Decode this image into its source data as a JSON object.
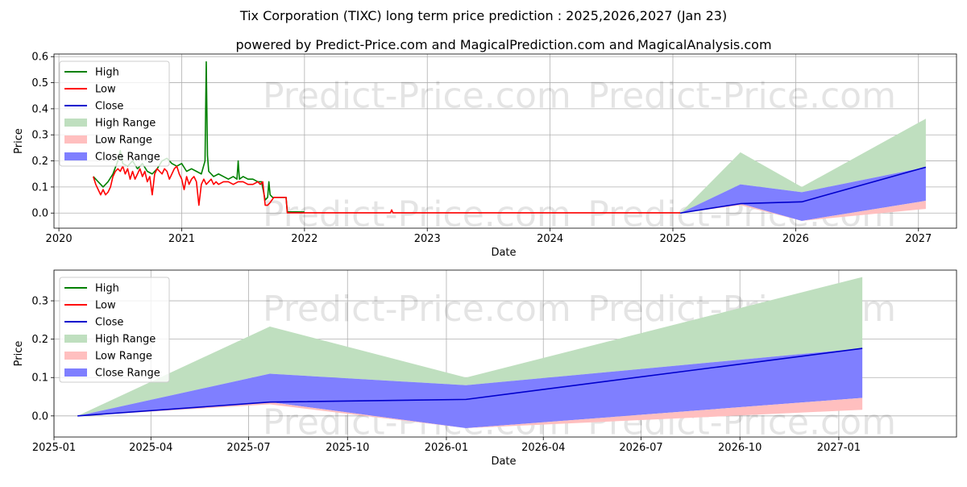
{
  "figure": {
    "title": "Tix Corporation (TIXC) long term price prediction : 2025,2026,2027 (Jan 23)",
    "subtitle": "powered by Predict-Price.com and MagicalPrediction.com and MagicalAnalysis.com",
    "watermark": "Predict-Price.com"
  },
  "colors": {
    "high": "#008000",
    "low": "#ff0000",
    "close": "#0000cd",
    "high_range": "#bfdfbf",
    "low_range": "#ffbfbf",
    "close_range": "#7f7fff"
  },
  "chart_data": [
    {
      "type": "line",
      "name": "full-history",
      "title": "",
      "xlabel": "Date",
      "ylabel": "Price",
      "xlim": [
        2019.96,
        2027.31
      ],
      "ylim": [
        -0.058,
        0.61
      ],
      "x_ticks": [
        2020,
        2021,
        2022,
        2023,
        2024,
        2025,
        2026,
        2027
      ],
      "x_tick_labels": [
        "2020",
        "2021",
        "2022",
        "2023",
        "2024",
        "2025",
        "2026",
        "2027"
      ],
      "y_ticks": [
        0.0,
        0.1,
        0.2,
        0.3,
        0.4,
        0.5,
        0.6
      ],
      "y_tick_labels": [
        "0.0",
        "0.1",
        "0.2",
        "0.3",
        "0.4",
        "0.5",
        "0.6"
      ],
      "grid": true,
      "legend": {
        "position": "top-left",
        "entries": [
          "High",
          "Low",
          "Close",
          "High Range",
          "Low Range",
          "Close Range"
        ]
      },
      "series": [
        {
          "name": "High",
          "x": [
            2020.28,
            2020.32,
            2020.36,
            2020.4,
            2020.44,
            2020.48,
            2020.5,
            2020.52,
            2020.56,
            2020.6,
            2020.64,
            2020.68,
            2020.72,
            2020.76,
            2020.8,
            2020.84,
            2020.88,
            2020.92,
            2020.96,
            2021.0,
            2021.04,
            2021.08,
            2021.12,
            2021.16,
            2021.19,
            2021.2,
            2021.21,
            2021.22,
            2021.26,
            2021.3,
            2021.34,
            2021.38,
            2021.42,
            2021.45,
            2021.46,
            2021.47,
            2021.5,
            2021.54,
            2021.58,
            2021.62,
            2021.65,
            2021.68,
            2021.7,
            2021.71,
            2021.72,
            2021.74,
            2021.77,
            2021.8,
            2021.85,
            2021.86,
            2022.0
          ],
          "values": [
            0.14,
            0.12,
            0.1,
            0.12,
            0.15,
            0.2,
            0.24,
            0.19,
            0.18,
            0.2,
            0.17,
            0.19,
            0.16,
            0.15,
            0.17,
            0.2,
            0.21,
            0.19,
            0.18,
            0.19,
            0.16,
            0.17,
            0.16,
            0.15,
            0.2,
            0.58,
            0.22,
            0.16,
            0.14,
            0.15,
            0.14,
            0.13,
            0.14,
            0.13,
            0.2,
            0.13,
            0.14,
            0.13,
            0.13,
            0.12,
            0.12,
            0.05,
            0.06,
            0.12,
            0.07,
            0.06,
            0.06,
            0.06,
            0.06,
            0.005,
            0.004
          ]
        },
        {
          "name": "Low",
          "x": [
            2020.28,
            2020.3,
            2020.32,
            2020.34,
            2020.36,
            2020.38,
            2020.4,
            2020.42,
            2020.44,
            2020.46,
            2020.48,
            2020.5,
            2020.52,
            2020.54,
            2020.56,
            2020.58,
            2020.6,
            2020.62,
            2020.64,
            2020.66,
            2020.68,
            2020.7,
            2020.72,
            2020.74,
            2020.76,
            2020.78,
            2020.8,
            2020.82,
            2020.84,
            2020.86,
            2020.88,
            2020.9,
            2020.92,
            2020.94,
            2020.96,
            2020.98,
            2021.0,
            2021.02,
            2021.04,
            2021.06,
            2021.08,
            2021.1,
            2021.12,
            2021.14,
            2021.16,
            2021.18,
            2021.2,
            2021.22,
            2021.24,
            2021.26,
            2021.28,
            2021.3,
            2021.34,
            2021.38,
            2021.42,
            2021.46,
            2021.5,
            2021.54,
            2021.58,
            2021.62,
            2021.64,
            2021.66,
            2021.68,
            2021.7,
            2021.72,
            2021.75,
            2021.85,
            2021.86,
            2022.0,
            2022.5,
            2022.7,
            2022.71,
            2022.72,
            2023.0,
            2024.0,
            2025.06
          ],
          "values": [
            0.14,
            0.11,
            0.09,
            0.07,
            0.09,
            0.07,
            0.08,
            0.1,
            0.14,
            0.16,
            0.17,
            0.16,
            0.18,
            0.15,
            0.17,
            0.13,
            0.16,
            0.13,
            0.15,
            0.17,
            0.14,
            0.16,
            0.12,
            0.14,
            0.07,
            0.15,
            0.17,
            0.16,
            0.15,
            0.17,
            0.16,
            0.13,
            0.15,
            0.17,
            0.18,
            0.15,
            0.13,
            0.09,
            0.14,
            0.11,
            0.13,
            0.14,
            0.12,
            0.03,
            0.11,
            0.13,
            0.11,
            0.12,
            0.13,
            0.11,
            0.12,
            0.11,
            0.12,
            0.12,
            0.11,
            0.12,
            0.12,
            0.11,
            0.11,
            0.12,
            0.11,
            0.12,
            0.03,
            0.03,
            0.04,
            0.06,
            0.06,
            0.001,
            0.001,
            0.001,
            0.001,
            0.012,
            0.001,
            0.001,
            0.001,
            0.001
          ]
        },
        {
          "name": "Close",
          "x": [
            2025.06,
            2025.55,
            2026.05,
            2027.06
          ],
          "values": [
            0.0,
            0.036,
            0.043,
            0.176
          ]
        },
        {
          "name": "High Range",
          "x": [
            2025.06,
            2025.55,
            2026.05,
            2027.06
          ],
          "upper": [
            0.0,
            0.233,
            0.1,
            0.362
          ],
          "lower": [
            0.0,
            0.11,
            0.08,
            0.176
          ]
        },
        {
          "name": "Close Range",
          "x": [
            2025.06,
            2025.55,
            2026.05,
            2027.06
          ],
          "upper": [
            0.0,
            0.11,
            0.08,
            0.176
          ],
          "lower": [
            0.0,
            0.036,
            -0.03,
            0.047
          ]
        },
        {
          "name": "Low Range",
          "x": [
            2025.06,
            2025.55,
            2026.05,
            2027.06
          ],
          "upper": [
            0.0,
            0.036,
            -0.03,
            0.047
          ],
          "lower": [
            0.0,
            0.03,
            -0.03,
            0.016
          ]
        }
      ]
    },
    {
      "type": "line",
      "name": "forecast-zoom",
      "title": "",
      "xlabel": "Date",
      "ylabel": "Price",
      "xlim": [
        2025.0,
        2027.3
      ],
      "ylim": [
        -0.055,
        0.38
      ],
      "x_ticks": [
        2025.0,
        2025.247,
        2025.496,
        2025.748,
        2026.0,
        2026.247,
        2026.496,
        2026.748,
        2027.0
      ],
      "x_tick_labels": [
        "2025-01",
        "2025-04",
        "2025-07",
        "2025-10",
        "2026-01",
        "2026-04",
        "2026-07",
        "2026-10",
        "2027-01"
      ],
      "y_ticks": [
        0.0,
        0.1,
        0.2,
        0.3
      ],
      "y_tick_labels": [
        "0.0",
        "0.1",
        "0.2",
        "0.3"
      ],
      "grid": true,
      "legend": {
        "position": "top-left",
        "entries": [
          "High",
          "Low",
          "Close",
          "High Range",
          "Low Range",
          "Close Range"
        ]
      },
      "series": [
        {
          "name": "Close",
          "x": [
            2025.06,
            2025.55,
            2026.05,
            2027.06
          ],
          "values": [
            0.0,
            0.036,
            0.043,
            0.176
          ]
        },
        {
          "name": "High Range",
          "x": [
            2025.06,
            2025.55,
            2026.05,
            2027.06
          ],
          "upper": [
            0.0,
            0.233,
            0.1,
            0.362
          ],
          "lower": [
            0.0,
            0.11,
            0.08,
            0.176
          ]
        },
        {
          "name": "Close Range",
          "x": [
            2025.06,
            2025.55,
            2026.05,
            2027.06
          ],
          "upper": [
            0.0,
            0.11,
            0.08,
            0.176
          ],
          "lower": [
            0.0,
            0.036,
            -0.032,
            0.047
          ]
        },
        {
          "name": "Low Range",
          "x": [
            2025.06,
            2025.55,
            2026.05,
            2027.06
          ],
          "upper": [
            0.0,
            0.036,
            -0.032,
            0.047
          ],
          "lower": [
            0.0,
            0.03,
            -0.032,
            0.016
          ]
        }
      ]
    }
  ]
}
